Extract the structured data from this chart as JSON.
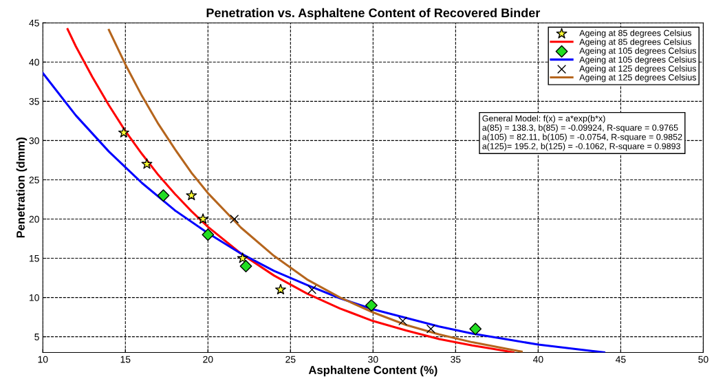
{
  "chart_data": {
    "type": "line",
    "title": "Penetration vs. Asphaltene Content of Recovered Binder",
    "xlabel": "Asphaltene Content (%)",
    "ylabel": "Penetration (dmm)",
    "xlim": [
      10,
      50
    ],
    "xticks": [
      10,
      15,
      20,
      25,
      30,
      35,
      40,
      45,
      50
    ],
    "ylim": [
      3,
      45
    ],
    "yticks": [
      5,
      10,
      15,
      20,
      25,
      30,
      35,
      40,
      45
    ],
    "grid": true,
    "legend": "top right",
    "series": [
      {
        "name": "Ageing at 85 degrees Celsius",
        "type": "scatter",
        "marker": "star",
        "color": "#ffff33",
        "x": [
          14.9,
          16.3,
          19.0,
          19.7,
          22.1,
          24.4
        ],
        "values": [
          31,
          27,
          23,
          20,
          15,
          11
        ]
      },
      {
        "name": "Ageing at 85 degrees Celsius",
        "marker": "none",
        "color": "#ff0000",
        "x": [
          11.5,
          12,
          13,
          14,
          15,
          16,
          17,
          18,
          19,
          20,
          22,
          24,
          26,
          28,
          30,
          32,
          34,
          36,
          38,
          38.5
        ],
        "values": [
          44.2,
          42.0,
          38.1,
          34.5,
          31.2,
          28.3,
          25.6,
          23.2,
          21.0,
          19.0,
          15.6,
          12.8,
          10.5,
          8.6,
          7.0,
          5.8,
          4.7,
          3.9,
          3.2,
          3.0
        ]
      },
      {
        "name": "Ageing at 105 degrees Celsius",
        "type": "scatter",
        "marker": "diamond",
        "color": "#22dd22",
        "x": [
          17.3,
          20.0,
          22.3,
          29.9,
          36.2
        ],
        "values": [
          23,
          18,
          14,
          9,
          6
        ]
      },
      {
        "name": "Ageing at 105 degrees Celsius",
        "marker": "none",
        "color": "#0000ff",
        "x": [
          10,
          12,
          14,
          16,
          18,
          20,
          22,
          24,
          26,
          28,
          30,
          32,
          34,
          36,
          38,
          40,
          42,
          44
        ],
        "values": [
          38.6,
          33.2,
          28.6,
          24.6,
          21.1,
          18.2,
          15.6,
          13.4,
          11.6,
          9.9,
          8.5,
          7.4,
          6.3,
          5.4,
          4.7,
          4.0,
          3.5,
          3.0
        ]
      },
      {
        "name": "Ageing at 125 degrees Celsius",
        "type": "scatter",
        "marker": "cross",
        "color": "#000000",
        "x": [
          21.6,
          26.3,
          31.8,
          33.5
        ],
        "values": [
          20,
          11,
          7,
          6
        ]
      },
      {
        "name": "Ageing at 125 degrees Celsius",
        "marker": "none",
        "color": "#b5651d",
        "x": [
          14,
          15,
          16,
          17,
          18,
          19,
          20,
          22,
          24,
          26,
          28,
          30,
          32,
          34,
          36,
          38,
          39
        ],
        "values": [
          44.1,
          39.7,
          35.7,
          32.1,
          28.9,
          25.9,
          23.3,
          18.9,
          15.3,
          12.3,
          10.0,
          8.1,
          6.5,
          5.3,
          4.3,
          3.5,
          3.1
        ]
      }
    ],
    "annotations": [
      "General Model: f(x) = a*exp(b*x)",
      "a(85) = 138.3, b(85) = -0.09924, R-square = 0.9765",
      "a(105) = 82.11, b(105) = -0.0754, R-square = 0.9852",
      "a(125)= 195.2, b(125) = -0.1062, R-square = 0.9893"
    ]
  }
}
